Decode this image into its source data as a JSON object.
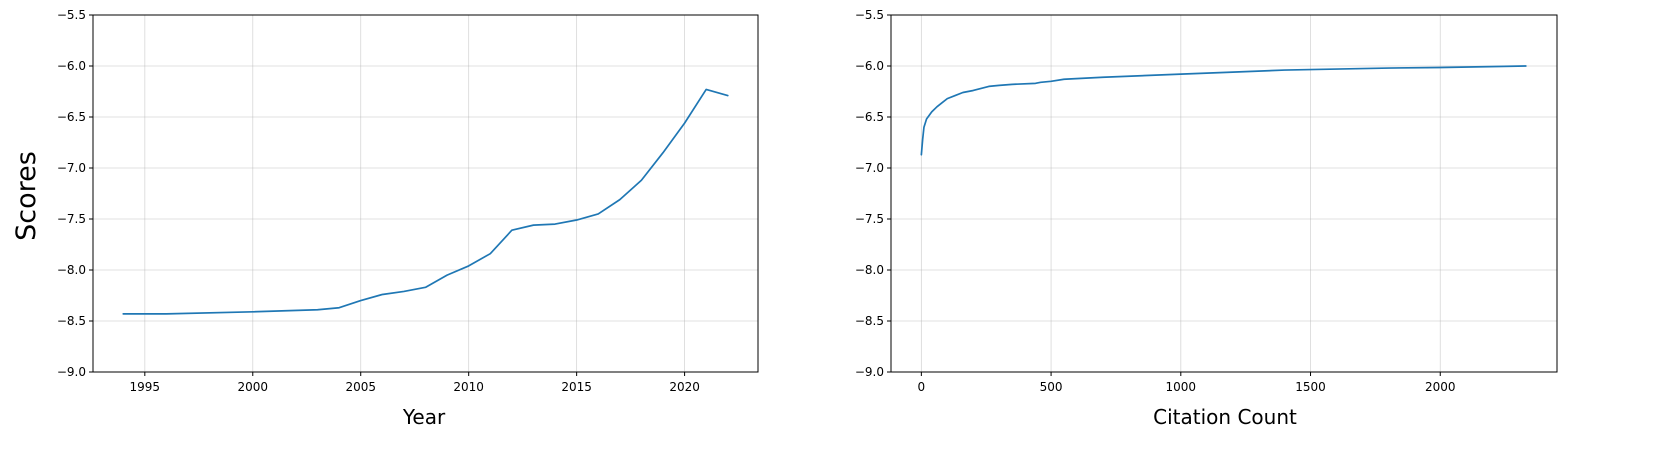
{
  "figure": {
    "ylabel": "Scores"
  },
  "colors": {
    "series": "#1f77b4"
  },
  "chart_data": [
    {
      "type": "line",
      "title": "",
      "xlabel": "Year",
      "ylabel": "Scores",
      "xlim": [
        1992.6,
        2023.4
      ],
      "ylim": [
        -9.0,
        -5.5
      ],
      "xticks": [
        1995,
        2000,
        2005,
        2010,
        2015,
        2020
      ],
      "yticks": [
        -9.0,
        -8.5,
        -8.0,
        -7.5,
        -7.0,
        -6.5,
        -6.0,
        -5.5
      ],
      "grid": true,
      "series": [
        {
          "x": [
            1994,
            1996,
            2000,
            2003,
            2004,
            2005,
            2006,
            2007,
            2008,
            2009,
            2010,
            2011,
            2012,
            2013,
            2014,
            2015,
            2016,
            2017,
            2018,
            2019,
            2020,
            2021,
            2022
          ],
          "y": [
            -8.43,
            -8.43,
            -8.41,
            -8.39,
            -8.37,
            -8.3,
            -8.24,
            -8.21,
            -8.17,
            -8.05,
            -7.96,
            -7.84,
            -7.61,
            -7.56,
            -7.55,
            -7.51,
            -7.45,
            -7.31,
            -7.12,
            -6.85,
            -6.56,
            -6.23,
            -6.29
          ]
        }
      ]
    },
    {
      "type": "line",
      "title": "",
      "xlabel": "Citation Count",
      "ylabel": "",
      "xlim": [
        -117,
        2450
      ],
      "ylim": [
        -9.0,
        -5.5
      ],
      "xticks": [
        0,
        500,
        1000,
        1500,
        2000
      ],
      "yticks": [
        -9.0,
        -8.5,
        -8.0,
        -7.5,
        -7.0,
        -6.5,
        -6.0,
        -5.5
      ],
      "grid": true,
      "series": [
        {
          "x": [
            0,
            5,
            10,
            20,
            40,
            60,
            80,
            100,
            130,
            160,
            200,
            230,
            260,
            300,
            350,
            440,
            460,
            500,
            550,
            700,
            1000,
            1200,
            1400,
            1800,
            2000,
            2330
          ],
          "y": [
            -6.87,
            -6.72,
            -6.6,
            -6.52,
            -6.45,
            -6.4,
            -6.36,
            -6.32,
            -6.29,
            -6.26,
            -6.24,
            -6.22,
            -6.2,
            -6.19,
            -6.18,
            -6.17,
            -6.16,
            -6.15,
            -6.13,
            -6.11,
            -6.08,
            -6.06,
            -6.04,
            -6.02,
            -6.015,
            -6.0
          ]
        }
      ]
    }
  ]
}
